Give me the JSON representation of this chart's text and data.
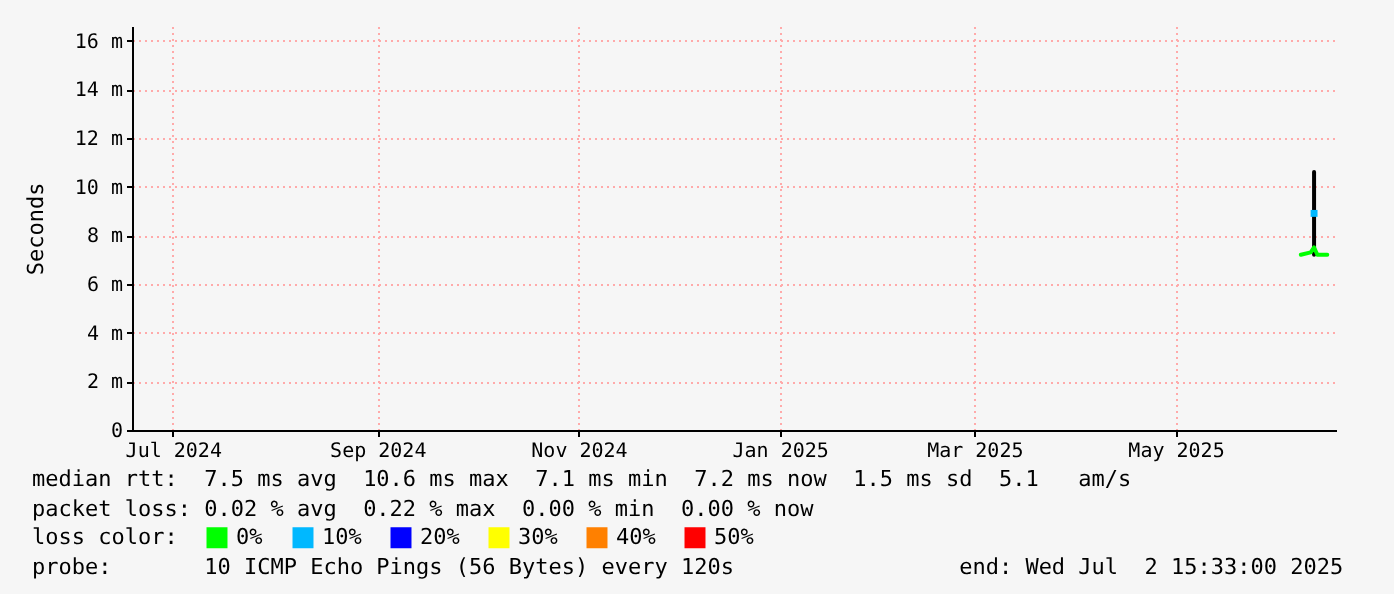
{
  "chart_data": {
    "type": "line",
    "ylabel": "Seconds",
    "legend_title": "loss color:",
    "legend": "bottom",
    "grid": true,
    "xlim": [
      "2024-07-02T15:33",
      "2025-07-02T15:33"
    ],
    "xticks": [
      {
        "value": "2024-07-15",
        "label": "Jul 2024"
      },
      {
        "value": "2024-09-15",
        "label": "Sep 2024"
      },
      {
        "value": "2024-11-15",
        "label": "Nov 2024"
      },
      {
        "value": "2025-01-15",
        "label": "Jan 2025"
      },
      {
        "value": "2025-03-15",
        "label": "Mar 2025"
      },
      {
        "value": "2025-05-15",
        "label": "May 2025"
      }
    ],
    "ylim": [
      0,
      16.6
    ],
    "yticks": [
      0,
      {
        "value": 2,
        "label": "2 m"
      },
      {
        "value": 4,
        "label": "4 m"
      },
      {
        "value": 6,
        "label": "6 m"
      },
      {
        "value": 8,
        "label": "8 m"
      },
      {
        "value": 10,
        "label": "10 m"
      },
      {
        "value": 12,
        "label": "12 m"
      },
      {
        "value": 14,
        "label": "14 m"
      },
      {
        "value": 16,
        "label": "16 m"
      }
    ],
    "series": [
      {
        "color": "#000000",
        "x": [
          "2025-06-26",
          "2025-06-26"
        ],
        "values": [
          7.2,
          10.6
        ]
      },
      {
        "name": "0%",
        "color": "#00ff00",
        "x": [
          "2025-06-22",
          "2025-06-25",
          "2025-06-26",
          "2025-06-27",
          "2025-06-30"
        ],
        "values": [
          7.2,
          7.3,
          7.5,
          7.2,
          7.2
        ]
      },
      {
        "name": "10%",
        "type": "scatter",
        "color": "#00b8ff",
        "x": [
          "2025-06-26"
        ],
        "values": [
          8.9
        ]
      },
      {
        "name": "20%",
        "type": "scatter",
        "color": "#0000ff"
      },
      {
        "name": "30%",
        "type": "scatter",
        "color": "#ffff00"
      },
      {
        "name": "40%",
        "type": "scatter",
        "color": "#ff8000"
      },
      {
        "name": "50%",
        "type": "scatter",
        "color": "#ff0000"
      }
    ],
    "annotations": [
      "median rtt:  7.5 ms avg  10.6 ms max  7.1 ms min  7.2 ms now  1.5 ms sd  5.1   am/s",
      "packet loss: 0.02 % avg  0.22 % max  0.00 % min  0.00 % now",
      "probe:       10 ICMP Echo Pings (56 Bytes) every 120s                 end: Wed Jul  2 15:33:00 2025"
    ]
  }
}
